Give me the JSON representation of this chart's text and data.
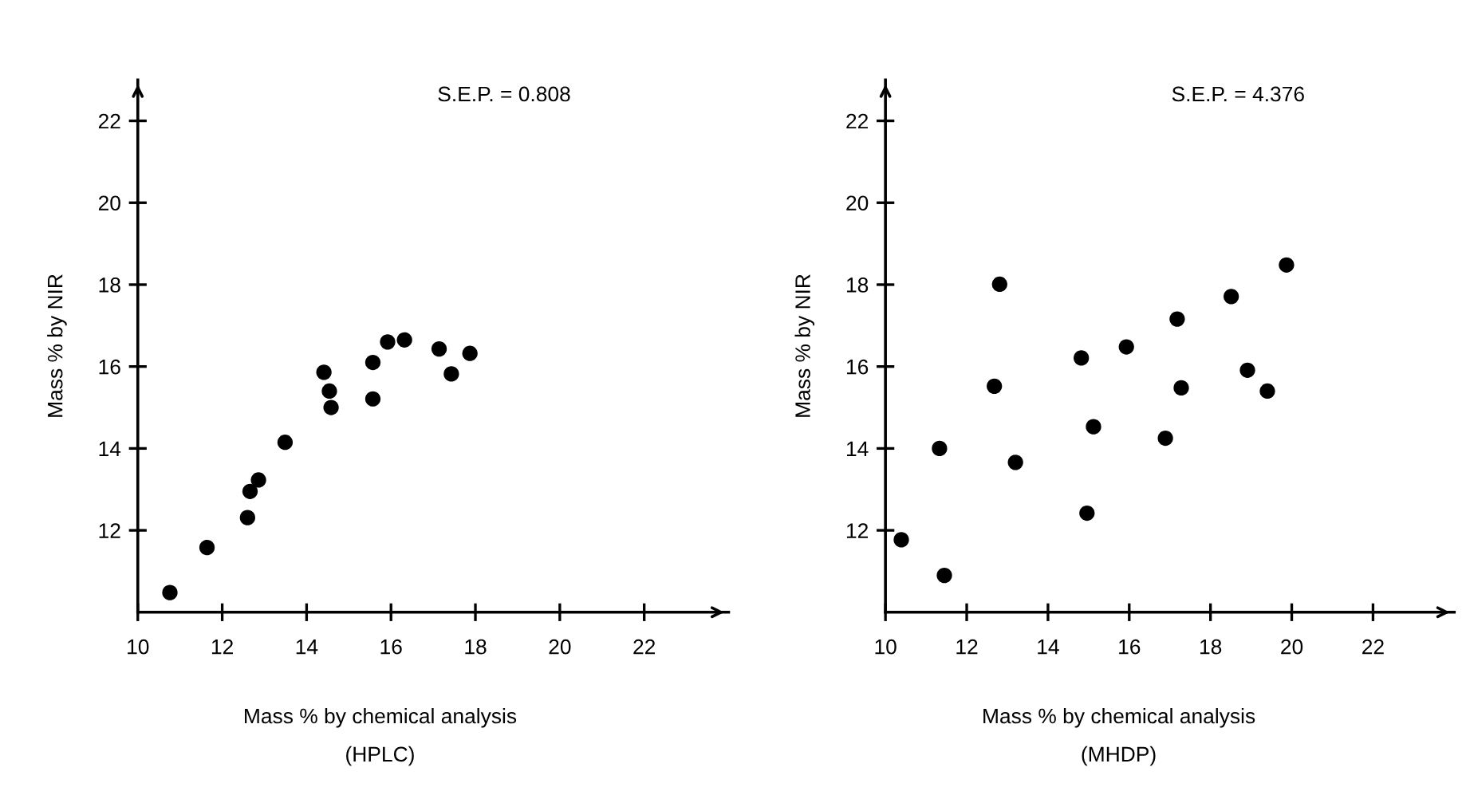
{
  "chart_data": [
    {
      "type": "scatter",
      "xlabel": "Mass % by chemical analysis",
      "ylabel": "Mass % by NIR",
      "annotations": [
        "S.E.P. = 0.808",
        "(HPLC)"
      ],
      "x": [
        10.76,
        11.64,
        12.6,
        12.66,
        12.86,
        13.49,
        14.41,
        14.54,
        14.58,
        15.57,
        15.57,
        15.92,
        16.32,
        17.14,
        17.43,
        17.87
      ],
      "series": [
        {
          "color": "#000000",
          "values": [
            10.48,
            11.58,
            12.31,
            12.95,
            13.23,
            14.15,
            15.86,
            15.4,
            15.0,
            16.1,
            15.21,
            16.6,
            16.65,
            16.43,
            15.82,
            16.32
          ]
        }
      ],
      "xlim": [
        10,
        24
      ],
      "ylim": [
        10,
        23
      ],
      "xticks": [
        10,
        12,
        14,
        16,
        18,
        20,
        22
      ],
      "yticks": [
        12,
        14,
        16,
        18,
        20,
        22
      ],
      "marker": "circle",
      "grid": false,
      "legend": false
    },
    {
      "type": "scatter",
      "xlabel": "Mass % by chemical analysis",
      "ylabel": "Mass % by NIR",
      "annotations": [
        "S.E.P. = 4.376",
        "(MHDP)"
      ],
      "x": [
        10.39,
        11.45,
        11.33,
        12.68,
        12.81,
        13.2,
        14.82,
        15.12,
        14.96,
        15.93,
        16.89,
        17.18,
        17.28,
        18.51,
        18.91,
        19.4,
        19.87
      ],
      "series": [
        {
          "color": "#000000",
          "values": [
            11.77,
            10.9,
            14.0,
            15.52,
            18.01,
            13.66,
            16.21,
            14.53,
            12.42,
            16.48,
            14.25,
            17.16,
            15.48,
            17.71,
            15.91,
            15.4,
            18.48
          ]
        }
      ],
      "xlim": [
        10,
        24
      ],
      "ylim": [
        10,
        23
      ],
      "xticks": [
        10,
        12,
        14,
        16,
        18,
        20,
        22
      ],
      "yticks": [
        12,
        14,
        16,
        18,
        20,
        22
      ],
      "marker": "circle",
      "grid": false,
      "legend": false
    }
  ]
}
